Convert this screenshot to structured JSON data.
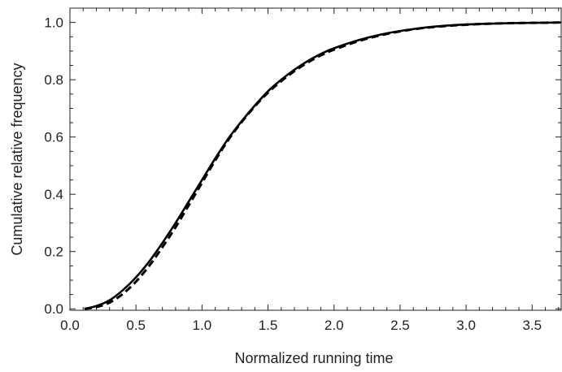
{
  "chart_data": {
    "type": "line",
    "title": "",
    "xlabel": "Normalized running time",
    "ylabel": "Cumulative relative frequency",
    "xlim": [
      0.0,
      3.72
    ],
    "ylim": [
      -0.005,
      1.05
    ],
    "xticks": [
      0.0,
      0.5,
      1.0,
      1.5,
      2.0,
      2.5,
      3.0,
      3.5
    ],
    "xtick_labels": [
      "0.0",
      "0.5",
      "1.0",
      "1.5",
      "2.0",
      "2.5",
      "3.0",
      "3.5"
    ],
    "yticks": [
      0.0,
      0.2,
      0.4,
      0.6,
      0.8,
      1.0
    ],
    "ytick_labels": [
      "0.0",
      "0.2",
      "0.4",
      "0.6",
      "0.8",
      "1.0"
    ],
    "grid": false,
    "legend": "none",
    "series": [
      {
        "style": "solid",
        "color": "#000000",
        "x": [
          0.11,
          0.2,
          0.3,
          0.4,
          0.5,
          0.6,
          0.7,
          0.8,
          0.9,
          1.0,
          1.1,
          1.2,
          1.3,
          1.4,
          1.5,
          1.6,
          1.7,
          1.8,
          1.9,
          2.0,
          2.2,
          2.4,
          2.6,
          2.8,
          3.0,
          3.2,
          3.4,
          3.6,
          3.72
        ],
        "y": [
          0.0,
          0.01,
          0.03,
          0.065,
          0.11,
          0.165,
          0.23,
          0.3,
          0.375,
          0.45,
          0.525,
          0.595,
          0.655,
          0.71,
          0.76,
          0.8,
          0.835,
          0.865,
          0.89,
          0.91,
          0.94,
          0.962,
          0.977,
          0.987,
          0.993,
          0.996,
          0.998,
          0.999,
          1.0
        ]
      },
      {
        "style": "dashed",
        "color": "#000000",
        "x": [
          0.11,
          0.2,
          0.3,
          0.4,
          0.5,
          0.6,
          0.7,
          0.8,
          0.9,
          1.0,
          1.1,
          1.2,
          1.3,
          1.4,
          1.5,
          1.6,
          1.7,
          1.8,
          1.9,
          2.0,
          2.2,
          2.4,
          2.6,
          2.8,
          3.0,
          3.2,
          3.4,
          3.6,
          3.72
        ],
        "y": [
          0.0,
          0.006,
          0.022,
          0.052,
          0.095,
          0.15,
          0.215,
          0.285,
          0.362,
          0.44,
          0.518,
          0.59,
          0.652,
          0.707,
          0.755,
          0.795,
          0.83,
          0.86,
          0.885,
          0.905,
          0.937,
          0.96,
          0.976,
          0.986,
          0.992,
          0.996,
          0.998,
          0.999,
          1.0
        ]
      }
    ]
  }
}
